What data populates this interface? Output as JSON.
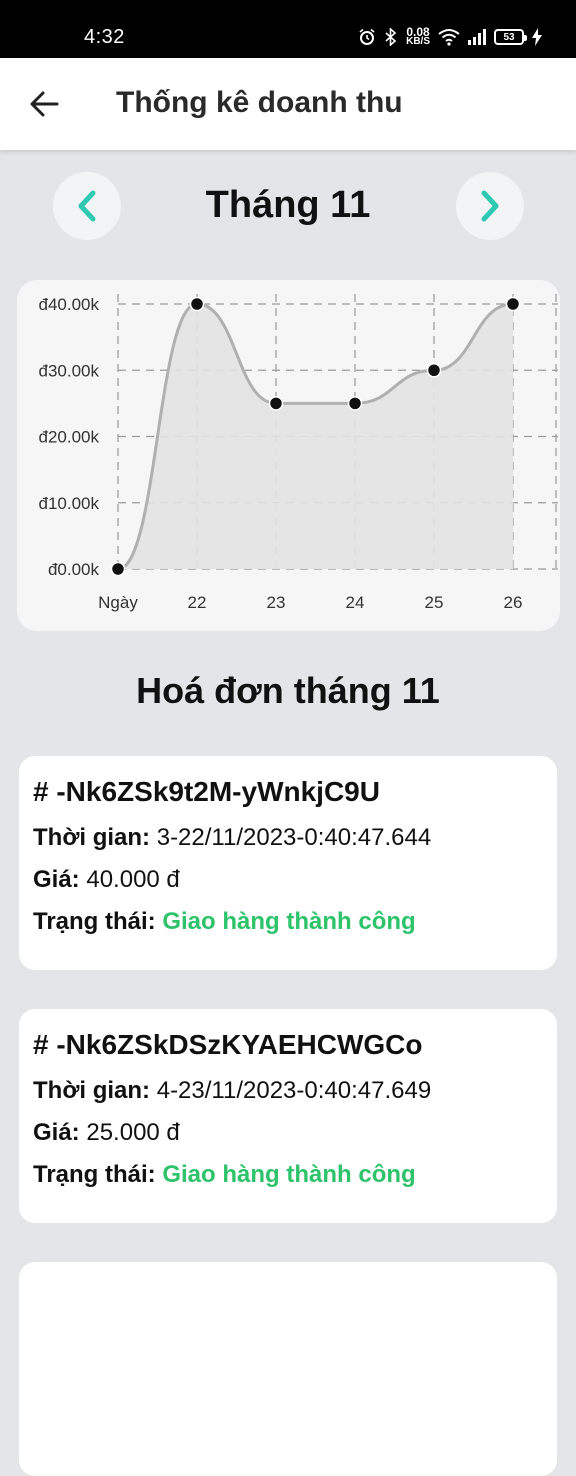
{
  "status_bar": {
    "time": "4:32",
    "net_speed_value": "0.08",
    "net_speed_unit": "KB/S",
    "battery": "53",
    "icons": [
      "alarm-icon",
      "bluetooth-icon",
      "wifi-icon",
      "signal-icon",
      "battery-icon",
      "charging-icon"
    ]
  },
  "app_bar": {
    "title": "Thống kê doanh thu",
    "back_icon": "arrow-left-icon"
  },
  "month_nav": {
    "title": "Tháng 11",
    "prev_icon": "chevron-left-icon",
    "next_icon": "chevron-right-icon",
    "accent": "#2ec9b0"
  },
  "chart_data": {
    "type": "area",
    "x": [
      "Ngày",
      "22",
      "23",
      "24",
      "25",
      "26"
    ],
    "values": [
      0,
      40,
      25,
      25,
      30,
      40
    ],
    "yticks": [
      "đ0.00k",
      "đ10.00k",
      "đ20.00k",
      "đ30.00k",
      "đ40.00k"
    ],
    "ylim": [
      0,
      40
    ],
    "grid": true,
    "line_color": "#b0b0b0",
    "fill_color": "#e3e3e3",
    "point_color": "#111111"
  },
  "invoices_section": {
    "title": "Hoá đơn tháng 11",
    "time_label": "Thời gian:",
    "price_label": "Giá:",
    "status_label": "Trạng thái:",
    "status_color": "#2ec36a",
    "items": [
      {
        "id": "# -Nk6ZSk9t2M-yWnkjC9U",
        "time": "3-22/11/2023-0:40:47.644",
        "price": "40.000 đ",
        "status": "Giao hàng thành công"
      },
      {
        "id": "# -Nk6ZSkDSzKYAEHCWGCo",
        "time": "4-23/11/2023-0:40:47.649",
        "price": "25.000 đ",
        "status": "Giao hàng thành công"
      }
    ]
  }
}
